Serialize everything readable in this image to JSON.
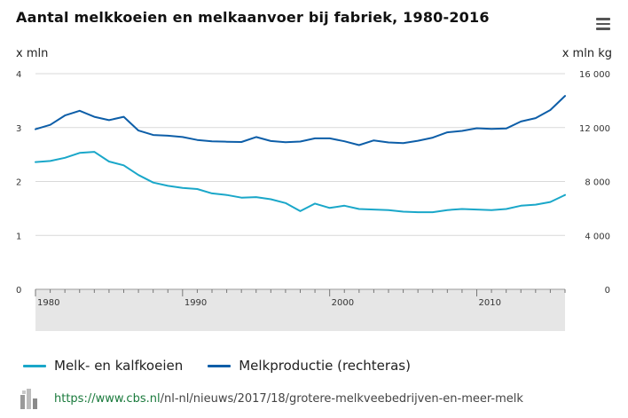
{
  "title": "Aantal melkkoeien en melkaanvoer bij fabriek, 1980-2016",
  "colors": {
    "series1": "#1aa7c9",
    "series2": "#0d5ea8",
    "band": "#e6e6e6",
    "grid": "#d9d9d9"
  },
  "legend": {
    "series1": "Melk- en kalfkoeien",
    "series2": "Melkproductie (rechteras)"
  },
  "footer": {
    "url_domain": "https://www.cbs.nl",
    "url_path": "/nl-nl/nieuws/2017/18/grotere-melkveebedrijven-en-meer-melk"
  },
  "icons": {
    "menu": "hamburger-menu-icon",
    "logo": "cbs-logo-icon"
  },
  "chart_data": {
    "type": "line",
    "left_axis": {
      "label": "x mln",
      "ticks": [
        "0",
        "1",
        "2",
        "3",
        "4"
      ],
      "ylim": [
        0,
        4
      ]
    },
    "right_axis": {
      "label": "x mln kg",
      "ticks": [
        "0",
        "4 000",
        "8 000",
        "12 000",
        "16 000"
      ],
      "ylim": [
        0,
        16000
      ]
    },
    "x_ticks": [
      "1980",
      "1990",
      "2000",
      "2010"
    ],
    "x": [
      1980,
      1981,
      1982,
      1983,
      1984,
      1985,
      1986,
      1987,
      1988,
      1989,
      1990,
      1991,
      1992,
      1993,
      1994,
      1995,
      1996,
      1997,
      1998,
      1999,
      2000,
      2001,
      2002,
      2003,
      2004,
      2005,
      2006,
      2007,
      2008,
      2009,
      2010,
      2011,
      2012,
      2013,
      2014,
      2015,
      2016
    ],
    "xlim": [
      1980,
      2016
    ],
    "grid": true,
    "legend_position": "bottom",
    "series": [
      {
        "name": "Melk- en kalfkoeien",
        "axis": "left",
        "values": [
          2.36,
          2.38,
          2.44,
          2.53,
          2.55,
          2.37,
          2.3,
          2.12,
          1.98,
          1.92,
          1.88,
          1.86,
          1.78,
          1.75,
          1.7,
          1.71,
          1.67,
          1.6,
          1.45,
          1.59,
          1.51,
          1.55,
          1.49,
          1.48,
          1.47,
          1.44,
          1.43,
          1.43,
          1.47,
          1.49,
          1.48,
          1.47,
          1.49,
          1.55,
          1.57,
          1.62,
          1.75
        ]
      },
      {
        "name": "Melkproductie (rechteras)",
        "axis": "right",
        "values": [
          11880,
          12200,
          12900,
          13250,
          12800,
          12550,
          12800,
          11780,
          11450,
          11400,
          11300,
          11080,
          10980,
          10950,
          10930,
          11300,
          11000,
          10920,
          10960,
          11200,
          11200,
          10980,
          10700,
          11050,
          10900,
          10850,
          11020,
          11250,
          11650,
          11750,
          11950,
          11900,
          11930,
          12450,
          12700,
          13300,
          14350
        ]
      }
    ]
  }
}
